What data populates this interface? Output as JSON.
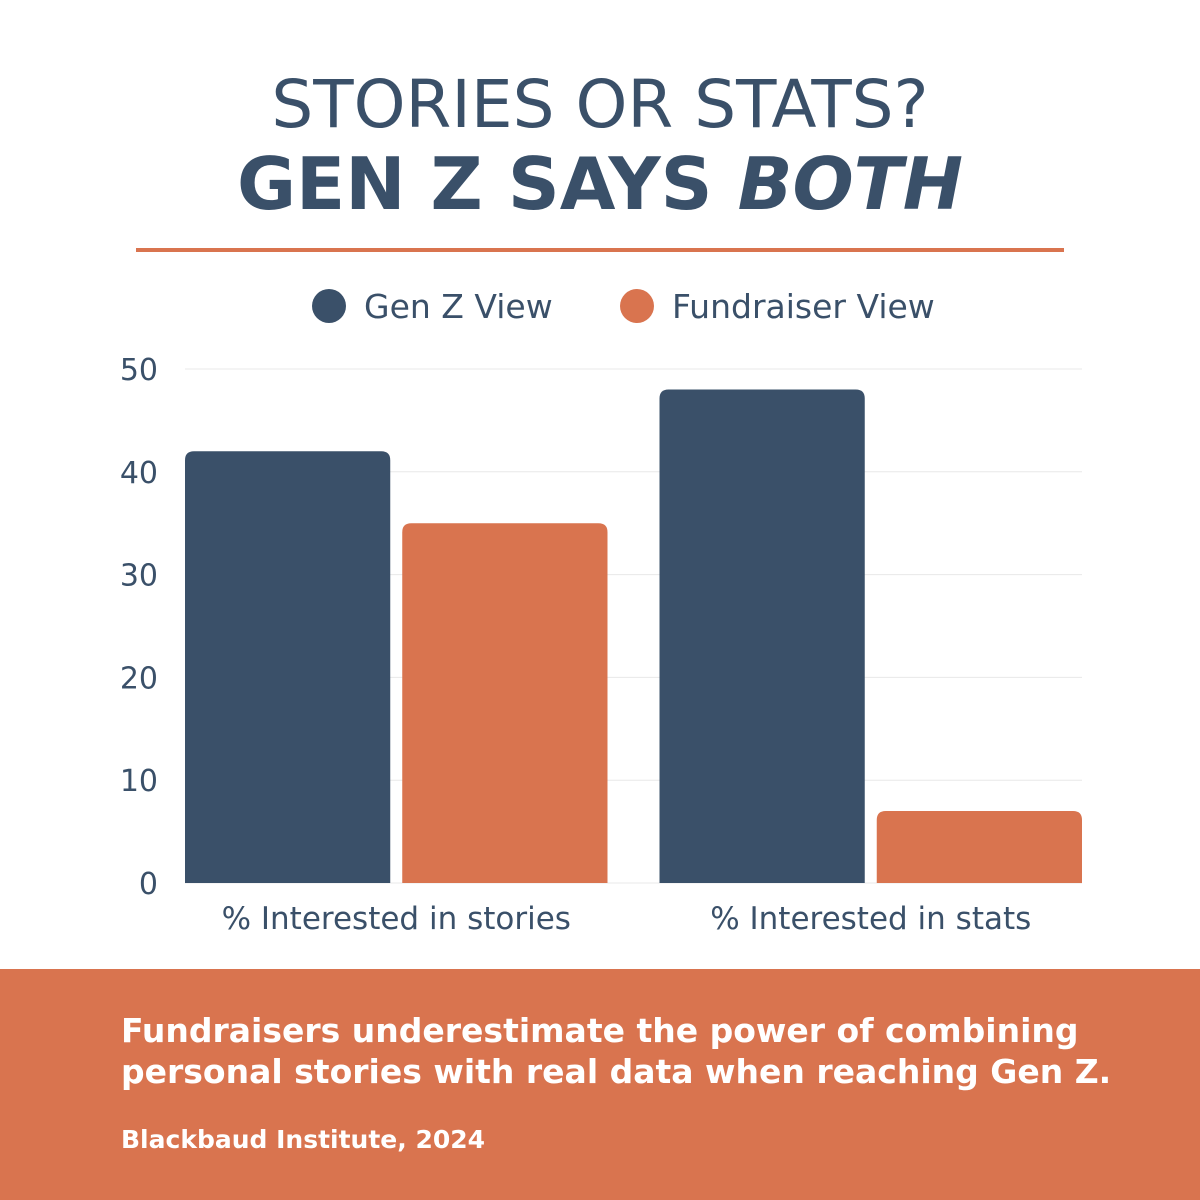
{
  "header": {
    "title_line1": "STORIES OR STATS?",
    "title_line2_prefix": "GEN Z SAYS ",
    "title_line2_emphasis": "BOTH"
  },
  "colors": {
    "primary": "#3a5069",
    "accent": "#d9744f",
    "grid": "#e8e8e8"
  },
  "chart_data": {
    "type": "bar",
    "categories": [
      "% Interested in stories",
      "% Interested in stats"
    ],
    "series": [
      {
        "name": "Gen Z View",
        "color": "#3a5069",
        "values": [
          42,
          48
        ]
      },
      {
        "name": "Fundraiser View",
        "color": "#d9744f",
        "values": [
          35,
          7
        ]
      }
    ],
    "yticks": [
      0,
      10,
      20,
      30,
      40,
      50
    ],
    "ylim": [
      0,
      50
    ],
    "grid": true,
    "legend": "top-center",
    "xlabel": "",
    "ylabel": ""
  },
  "footer": {
    "message": "Fundraisers underestimate the power of combining personal stories with real data when reaching Gen Z.",
    "source": "Blackbaud Institute, 2024"
  }
}
